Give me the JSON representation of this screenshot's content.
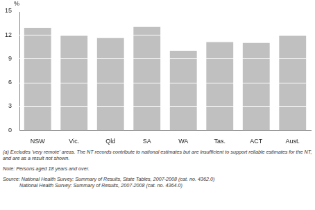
{
  "chart_data": {
    "type": "bar",
    "y_label": "%",
    "categories": [
      "NSW",
      "Vic.",
      "Qld",
      "SA",
      "WA",
      "Tas.",
      "ACT",
      "Aust."
    ],
    "values": [
      12.9,
      11.9,
      11.6,
      13.0,
      10.0,
      11.1,
      11.0,
      11.9
    ],
    "color": "#c0c0c0",
    "ylim": [
      0,
      15
    ],
    "yticks": [
      0,
      3,
      6,
      9,
      12,
      15
    ],
    "grid": true,
    "annotations": [
      "(a) Excludes 'very remote' areas. The NT records contribute to national estimates but are insufficient to support reliable estimates for the NT, and are as a result not shown.",
      "Note: Persons aged 18 years and over.",
      "Source: National Health Survey: Summary of Results, State Tables, 2007-2008 (cat. no. 4362.0)",
      "            National Health Survey: Summary of Results, 2007-2008 (cat. no. 4364.0)"
    ]
  }
}
